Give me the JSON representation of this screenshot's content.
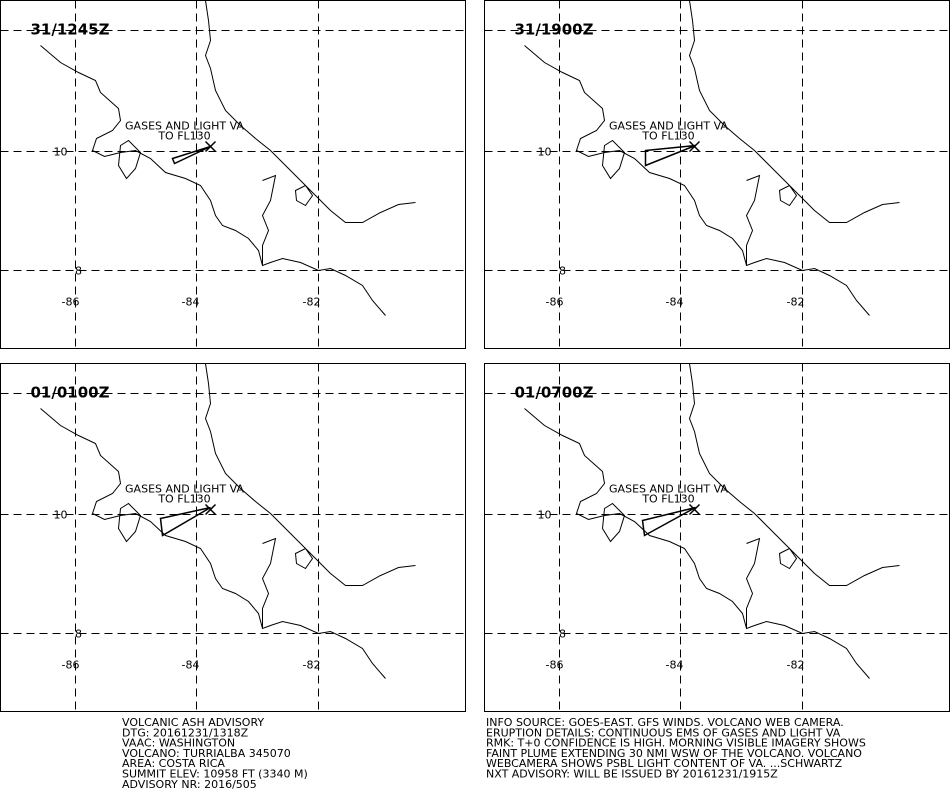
{
  "panels": [
    {
      "time": "31/1245Z"
    },
    {
      "time": "31/1900Z"
    },
    {
      "time": "01/0100Z"
    },
    {
      "time": "01/0700Z"
    }
  ],
  "plume_label": [
    "GASES AND LIGHT VA",
    "TO FL130"
  ],
  "lat_labels": [
    "10",
    "8"
  ],
  "lon_labels": [
    "-86",
    "-84",
    "-82"
  ],
  "advisory_left": [
    "VOLCANIC ASH ADVISORY",
    "DTG: 20161231/1318Z",
    "VAAC: WASHINGTON",
    "VOLCANO: TURRIALBA 345070",
    "AREA: COSTA RICA",
    "SUMMIT ELEV: 10958 FT (3340 M)",
    "ADVISORY NR: 2016/505"
  ],
  "advisory_right": [
    "INFO SOURCE: GOES-EAST. GFS WINDS. VOLCANO WEB CAMERA.",
    "ERUPTION DETAILS: CONTINUOUS EMS OF GASES AND LIGHT VA",
    "RMK: T+0 CONFIDENCE IS HIGH. MORNING VISIBLE IMAGERY SHOWS",
    "FAINT PLUME EXTENDING 30 NMI WSW OF THE VOLCANO. VOLCANO",
    "WEBCAMERA SHOWS PSBL LIGHT CONTENT OF VA. ...SCHWARTZ",
    "NXT ADVISORY: WILL BE ISSUED BY 20161231/1915Z"
  ]
}
